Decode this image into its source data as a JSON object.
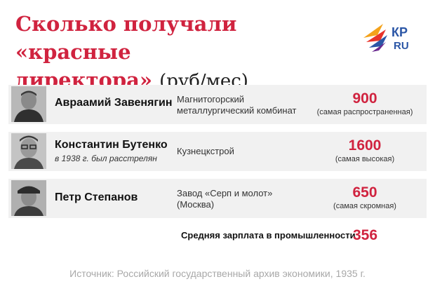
{
  "header": {
    "title_line1": "Сколько получали «красные",
    "title_line2": "директора»",
    "title_unit": "(руб/мес)",
    "logo_text_top": "КР",
    "logo_text_bottom": "RU"
  },
  "rows": [
    {
      "name": "Авраамий Завенягин",
      "note": "",
      "org_line1": "Магнитогорский",
      "org_line2": "металлургический комбинат",
      "salary": "900",
      "salary_note": "(самая распространенная)"
    },
    {
      "name": "Константин Бутенко",
      "note": "в 1938 г. был расстрелян",
      "org_line1": "Кузнецкстрой",
      "org_line2": "",
      "salary": "1600",
      "salary_note": "(самая высокая)"
    },
    {
      "name": "Петр Степанов",
      "note": "",
      "org_line1": "Завод «Серп и молот»",
      "org_line2": "(Москва)",
      "salary": "650",
      "salary_note": "(самая скромная)"
    }
  ],
  "average": {
    "label": "Средняя зарплата в промышленности",
    "value": "356"
  },
  "source": "Источник: Российский государственный архив экономики, 1935 г.",
  "colors": {
    "accent": "#d0233f",
    "row_background": "#f1f1f1",
    "source_text": "#a8a8a8"
  }
}
